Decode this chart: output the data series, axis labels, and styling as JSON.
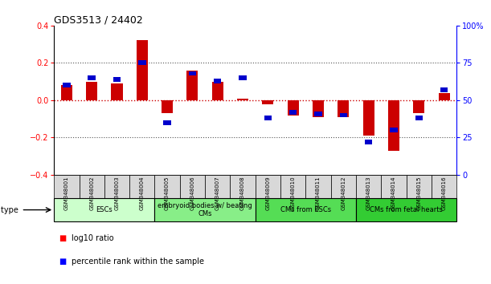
{
  "title": "GDS3513 / 24402",
  "samples": [
    "GSM348001",
    "GSM348002",
    "GSM348003",
    "GSM348004",
    "GSM348005",
    "GSM348006",
    "GSM348007",
    "GSM348008",
    "GSM348009",
    "GSM348010",
    "GSM348011",
    "GSM348012",
    "GSM348013",
    "GSM348014",
    "GSM348015",
    "GSM348016"
  ],
  "log10_ratio": [
    0.08,
    0.1,
    0.09,
    0.32,
    -0.07,
    0.16,
    0.1,
    0.01,
    -0.02,
    -0.08,
    -0.09,
    -0.09,
    -0.19,
    -0.27,
    -0.07,
    0.04
  ],
  "percentile_rank": [
    60,
    65,
    64,
    75,
    35,
    68,
    63,
    65,
    38,
    42,
    41,
    40,
    22,
    30,
    38,
    57
  ],
  "ylim_left": [
    -0.4,
    0.4
  ],
  "ylim_right": [
    0,
    100
  ],
  "bar_color_red": "#cc0000",
  "bar_color_blue": "#0000cc",
  "dotted_line_color": "#555555",
  "zero_line_color": "#cc0000",
  "cell_groups": [
    {
      "label": "ESCs",
      "start": 0,
      "end": 3,
      "color": "#ccffcc"
    },
    {
      "label": "embryoid bodies w/ beating\nCMs",
      "start": 4,
      "end": 7,
      "color": "#88ee88"
    },
    {
      "label": "CMs from ESCs",
      "start": 8,
      "end": 11,
      "color": "#55dd55"
    },
    {
      "label": "CMs from fetal hearts",
      "start": 12,
      "end": 15,
      "color": "#33cc33"
    }
  ],
  "legend_red_label": "log10 ratio",
  "legend_blue_label": "percentile rank within the sample",
  "ylabel_left_ticks": [
    -0.4,
    -0.2,
    0.0,
    0.2,
    0.4
  ],
  "ylabel_right_ticks": [
    0,
    25,
    50,
    75,
    100
  ],
  "ylabel_right_labels": [
    "0",
    "25",
    "50",
    "75",
    "100%"
  ]
}
